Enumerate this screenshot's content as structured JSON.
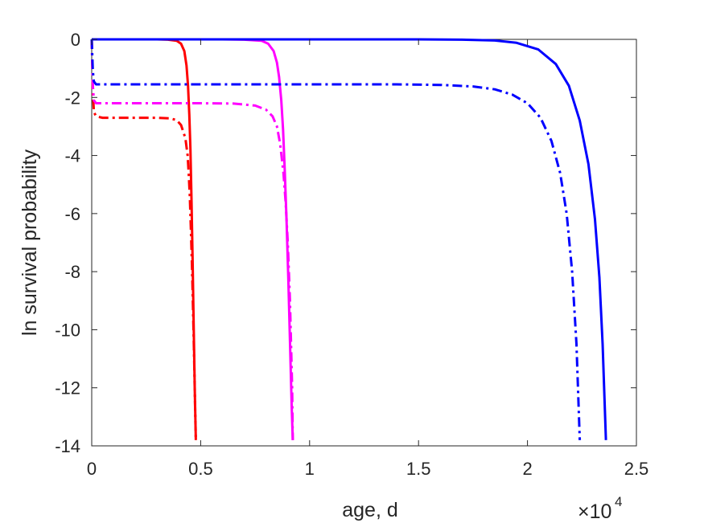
{
  "chart_data": {
    "type": "line",
    "xlabel": "age, d",
    "ylabel": "ln survival probability",
    "x_multiplier": {
      "base": "×10",
      "exponent": "4"
    },
    "xlim": [
      0,
      25000
    ],
    "ylim": [
      -14,
      0
    ],
    "xticks": [
      0,
      5000,
      10000,
      15000,
      20000,
      25000
    ],
    "xtick_labels": [
      "0",
      "0.5",
      "1",
      "1.5",
      "2",
      "2.5"
    ],
    "yticks": [
      0,
      -2,
      -4,
      -6,
      -8,
      -10,
      -12,
      -14
    ],
    "ytick_labels": [
      "0",
      "-2",
      "-4",
      "-6",
      "-8",
      "-10",
      "-12",
      "-14"
    ],
    "grid": false,
    "series": [
      {
        "color": "#ff0000",
        "style": "solid",
        "x": [
          0,
          1000,
          2000,
          3000,
          3500,
          3900,
          4100,
          4250,
          4350,
          4420,
          4480,
          4530,
          4580,
          4630,
          4680,
          4730,
          4780
        ],
        "y": [
          0,
          0,
          0,
          0,
          -0.01,
          -0.05,
          -0.15,
          -0.4,
          -0.9,
          -1.6,
          -2.6,
          -3.8,
          -5.5,
          -7.6,
          -9.8,
          -12.1,
          -13.8
        ]
      },
      {
        "color": "#ff0000",
        "style": "dashdot",
        "x": [
          0,
          50,
          100,
          200,
          500,
          1000,
          2000,
          3000,
          3600,
          3900,
          4100,
          4300,
          4400,
          4450,
          4500,
          4550,
          4600,
          4650,
          4700,
          4750,
          4780
        ],
        "y": [
          0,
          -1.8,
          -2.5,
          -2.65,
          -2.7,
          -2.7,
          -2.7,
          -2.7,
          -2.72,
          -2.78,
          -2.95,
          -3.4,
          -4.0,
          -4.6,
          -5.4,
          -6.5,
          -7.8,
          -9.3,
          -11.0,
          -12.8,
          -13.8
        ]
      },
      {
        "color": "#ff00ff",
        "style": "solid",
        "x": [
          0,
          2000,
          4000,
          6000,
          7000,
          7800,
          8100,
          8350,
          8500,
          8600,
          8700,
          8780,
          8860,
          8940,
          9020,
          9100,
          9180,
          9230
        ],
        "y": [
          0,
          0,
          0,
          0,
          -0.01,
          -0.05,
          -0.15,
          -0.4,
          -0.8,
          -1.3,
          -2.1,
          -3.1,
          -4.5,
          -6.2,
          -8.2,
          -10.4,
          -12.7,
          -13.8
        ]
      },
      {
        "color": "#ff00ff",
        "style": "dashdot",
        "x": [
          0,
          50,
          100,
          200,
          500,
          1000,
          3000,
          5000,
          6500,
          7500,
          8000,
          8300,
          8500,
          8650,
          8800,
          8900,
          9000,
          9100,
          9200,
          9230
        ],
        "y": [
          0,
          -1.6,
          -2.1,
          -2.2,
          -2.2,
          -2.2,
          -2.2,
          -2.2,
          -2.21,
          -2.28,
          -2.42,
          -2.65,
          -3.0,
          -3.6,
          -4.6,
          -5.6,
          -7.0,
          -9.0,
          -12.0,
          -13.8
        ]
      },
      {
        "color": "#0000ff",
        "style": "solid",
        "x": [
          0,
          5000,
          10000,
          15000,
          17000,
          18500,
          19500,
          20500,
          21300,
          21900,
          22400,
          22800,
          23100,
          23300,
          23450,
          23600
        ],
        "y": [
          0,
          0,
          0,
          0,
          -0.01,
          -0.04,
          -0.12,
          -0.35,
          -0.85,
          -1.6,
          -2.8,
          -4.3,
          -6.2,
          -8.2,
          -10.5,
          -13.8
        ]
      },
      {
        "color": "#0000ff",
        "style": "dashdot",
        "x": [
          0,
          50,
          100,
          200,
          500,
          1000,
          5000,
          10000,
          14000,
          16000,
          17500,
          18500,
          19300,
          20000,
          20600,
          21100,
          21500,
          21800,
          22050,
          22250,
          22400
        ],
        "y": [
          0,
          -1.1,
          -1.45,
          -1.55,
          -1.55,
          -1.55,
          -1.55,
          -1.55,
          -1.55,
          -1.57,
          -1.62,
          -1.72,
          -1.9,
          -2.2,
          -2.7,
          -3.5,
          -4.6,
          -6.0,
          -8.0,
          -10.5,
          -13.8
        ]
      }
    ]
  }
}
